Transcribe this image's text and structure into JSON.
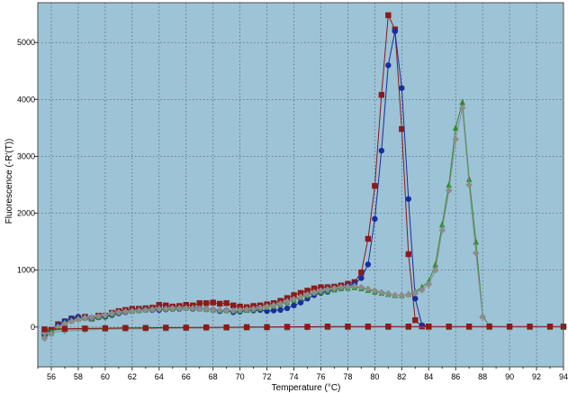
{
  "chart_data": {
    "type": "line",
    "title": "",
    "xlabel": "Temperature (°C)",
    "ylabel": "Fluorescence (-R'(T))",
    "xlim": [
      55,
      94
    ],
    "ylim": [
      -700,
      5700
    ],
    "xticks": [
      56,
      58,
      60,
      62,
      64,
      66,
      68,
      70,
      72,
      74,
      76,
      78,
      80,
      82,
      84,
      86,
      88,
      90,
      92,
      94
    ],
    "yticks": [
      0,
      1000,
      2000,
      3000,
      4000,
      5000
    ],
    "grid": true,
    "legend": "none",
    "plot_background": "#9dc3d6",
    "series": [
      {
        "color": "#8b1a1a",
        "marker": "square",
        "x": [
          55.5,
          56,
          56.5,
          57,
          57.5,
          58,
          58.5,
          59,
          59.5,
          60,
          60.5,
          61,
          61.5,
          62,
          62.5,
          63,
          63.5,
          64,
          64.5,
          65,
          65.5,
          66,
          66.5,
          67,
          67.5,
          68,
          68.5,
          69,
          69.5,
          70,
          70.5,
          71,
          71.5,
          72,
          72.5,
          73,
          73.5,
          74,
          74.5,
          75,
          75.5,
          76,
          76.5,
          77,
          77.5,
          78,
          78.5,
          79,
          79.5,
          80,
          80.5,
          81,
          81.5,
          82,
          82.5,
          83,
          83.5,
          84
        ],
        "y": [
          -100,
          -50,
          50,
          100,
          150,
          150,
          180,
          150,
          200,
          200,
          250,
          280,
          300,
          320,
          320,
          330,
          340,
          390,
          380,
          360,
          370,
          390,
          380,
          420,
          420,
          430,
          410,
          420,
          380,
          360,
          350,
          370,
          380,
          400,
          420,
          460,
          510,
          560,
          600,
          640,
          680,
          700,
          700,
          710,
          730,
          760,
          790,
          960,
          1550,
          2480,
          4080,
          5480,
          5230,
          3480,
          1280,
          120,
          10,
          10
        ]
      },
      {
        "color": "#1a2d9b",
        "marker": "circle",
        "x": [
          55.5,
          56,
          56.5,
          57,
          57.5,
          58,
          58.5,
          59,
          59.5,
          60,
          60.5,
          61,
          61.5,
          62,
          62.5,
          63,
          63.5,
          64,
          64.5,
          65,
          65.5,
          66,
          66.5,
          67,
          67.5,
          68,
          68.5,
          69,
          69.5,
          70,
          70.5,
          71,
          71.5,
          72,
          72.5,
          73,
          73.5,
          74,
          74.5,
          75,
          75.5,
          76,
          76.5,
          77,
          77.5,
          78,
          78.5,
          79,
          79.5,
          80,
          80.5,
          81,
          81.5,
          82,
          82.5,
          83,
          83.5,
          84
        ],
        "y": [
          -150,
          -100,
          30,
          100,
          150,
          180,
          160,
          150,
          170,
          180,
          210,
          240,
          260,
          280,
          290,
          300,
          300,
          300,
          310,
          320,
          320,
          330,
          320,
          320,
          310,
          300,
          280,
          290,
          260,
          270,
          300,
          290,
          300,
          280,
          290,
          300,
          330,
          380,
          430,
          500,
          560,
          600,
          620,
          660,
          690,
          720,
          760,
          860,
          1100,
          1900,
          3100,
          4600,
          5200,
          4200,
          2250,
          500,
          30,
          10
        ]
      },
      {
        "color": "#2e8b2e",
        "marker": "triangle",
        "x": [
          55.5,
          56,
          56.5,
          57,
          57.5,
          58,
          58.5,
          59,
          59.5,
          60,
          60.5,
          61,
          61.5,
          62,
          62.5,
          63,
          63.5,
          64,
          64.5,
          65,
          65.5,
          66,
          66.5,
          67,
          67.5,
          68,
          68.5,
          69,
          69.5,
          70,
          70.5,
          71,
          71.5,
          72,
          72.5,
          73,
          73.5,
          74,
          74.5,
          75,
          75.5,
          76,
          76.5,
          77,
          77.5,
          78,
          78.5,
          79,
          79.5,
          80,
          80.5,
          81,
          81.5,
          82,
          82.5,
          83,
          83.5,
          84,
          84.5,
          85,
          85.5,
          86,
          86.5,
          87,
          87.5,
          88,
          88.5
        ],
        "y": [
          -150,
          -100,
          0,
          80,
          120,
          150,
          170,
          160,
          180,
          200,
          230,
          260,
          280,
          290,
          300,
          310,
          320,
          330,
          330,
          330,
          340,
          340,
          340,
          330,
          320,
          310,
          300,
          300,
          290,
          290,
          300,
          310,
          330,
          350,
          370,
          400,
          440,
          480,
          520,
          560,
          600,
          620,
          640,
          660,
          680,
          690,
          700,
          680,
          650,
          620,
          600,
          580,
          560,
          560,
          580,
          620,
          700,
          800,
          1100,
          1800,
          2500,
          3500,
          3950,
          2600,
          1500,
          200,
          20
        ]
      },
      {
        "color": "#8c8c8c",
        "marker": "diamond",
        "x": [
          55.5,
          56,
          56.5,
          57,
          57.5,
          58,
          58.5,
          59,
          59.5,
          60,
          60.5,
          61,
          61.5,
          62,
          62.5,
          63,
          63.5,
          64,
          64.5,
          65,
          65.5,
          66,
          66.5,
          67,
          67.5,
          68,
          68.5,
          69,
          69.5,
          70,
          70.5,
          71,
          71.5,
          72,
          72.5,
          73,
          73.5,
          74,
          74.5,
          75,
          75.5,
          76,
          76.5,
          77,
          77.5,
          78,
          78.5,
          79,
          79.5,
          80,
          80.5,
          81,
          81.5,
          82,
          82.5,
          83,
          83.5,
          84,
          84.5,
          85,
          85.5,
          86,
          86.5,
          87,
          87.5,
          88,
          88.5
        ],
        "y": [
          -200,
          -120,
          0,
          60,
          100,
          130,
          160,
          170,
          190,
          210,
          240,
          260,
          270,
          280,
          290,
          300,
          310,
          320,
          320,
          330,
          330,
          330,
          330,
          320,
          310,
          300,
          300,
          290,
          290,
          300,
          310,
          320,
          340,
          360,
          380,
          410,
          450,
          490,
          530,
          570,
          610,
          640,
          660,
          680,
          700,
          710,
          720,
          700,
          670,
          640,
          610,
          590,
          560,
          560,
          570,
          600,
          650,
          750,
          1000,
          1700,
          2400,
          3300,
          3850,
          2500,
          1300,
          180,
          20
        ]
      },
      {
        "color": "#2e8b2e",
        "marker": "triangle",
        "x": [
          55.5,
          57,
          58.5,
          60,
          61.5,
          63,
          64.5,
          66,
          67.5,
          69,
          70.5,
          72,
          73.5,
          75,
          76.5,
          78,
          79.5,
          81,
          82.5,
          84,
          85.5,
          87,
          88.5,
          90,
          91.5,
          93,
          94
        ],
        "y": [
          -60,
          -40,
          -30,
          -30,
          -25,
          -20,
          -20,
          -15,
          -10,
          -10,
          -10,
          -5,
          -5,
          0,
          0,
          0,
          0,
          0,
          0,
          0,
          0,
          0,
          0,
          0,
          0,
          0,
          0
        ]
      },
      {
        "color": "#8c8c8c",
        "marker": "diamond",
        "x": [
          55.5,
          57,
          58.5,
          60,
          61.5,
          63,
          64.5,
          66,
          67.5,
          69,
          70.5,
          72,
          73.5,
          75,
          76.5,
          78,
          79.5,
          81,
          82.5,
          84,
          85.5,
          87,
          88.5,
          90,
          91.5,
          93,
          94
        ],
        "y": [
          -100,
          -70,
          -50,
          -40,
          -35,
          -30,
          -25,
          -20,
          -20,
          -15,
          -15,
          -10,
          -10,
          -10,
          -5,
          -5,
          -5,
          0,
          0,
          0,
          0,
          0,
          0,
          0,
          0,
          0,
          0
        ]
      },
      {
        "color": "#8b1a1a",
        "marker": "square",
        "x": [
          55.5,
          57,
          58.5,
          60,
          61.5,
          63,
          64.5,
          66,
          67.5,
          69,
          70.5,
          72,
          73.5,
          75,
          76.5,
          78,
          79.5,
          81,
          82.5,
          84,
          85.5,
          87,
          88.5,
          90,
          91.5,
          93,
          94
        ],
        "y": [
          -40,
          -30,
          -25,
          -20,
          -15,
          -15,
          -10,
          -10,
          -5,
          -5,
          0,
          0,
          5,
          5,
          10,
          10,
          10,
          10,
          10,
          10,
          10,
          10,
          10,
          10,
          10,
          10,
          10
        ]
      }
    ]
  }
}
